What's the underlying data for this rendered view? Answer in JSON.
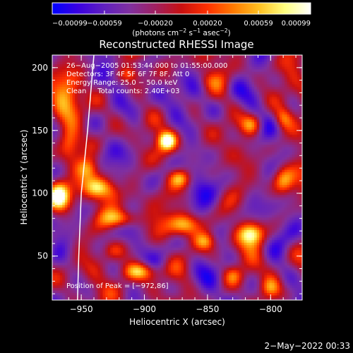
{
  "chart_data": {
    "type": "heatmap",
    "title": "Reconstructed RHESSI Image",
    "xlabel": "Heliocentric X (arcsec)",
    "ylabel": "Heliocentric Y (arcsec)",
    "xlim": [
      -973,
      -775
    ],
    "ylim": [
      15,
      210
    ],
    "x_ticks": [
      -950,
      -900,
      -850,
      -800
    ],
    "x_tick_labels": [
      "−950",
      "−900",
      "−850",
      "−800"
    ],
    "y_ticks": [
      50,
      100,
      150,
      200
    ],
    "y_tick_labels": [
      "50",
      "100",
      "150",
      "200"
    ],
    "colorbar": {
      "range": [
        -0.00099,
        0.00099
      ],
      "ticks": [
        -0.00099,
        -0.00059,
        -0.0002,
        0.0002,
        0.00059,
        0.00099
      ],
      "tick_labels": [
        "−0.00099",
        "−0.00059",
        "−0.00020",
        "0.00020",
        "0.00059",
        "0.00099"
      ],
      "unit_label": "(photons cm⁻² s⁻¹ asec⁻²)",
      "unit_parts": [
        "(photons cm",
        "−2",
        " s",
        "−1",
        " asec",
        "−2",
        ")"
      ],
      "colors": [
        "#0000ff",
        "#3a00e0",
        "#6020c0",
        "#8030a0",
        "#a02060",
        "#c81010",
        "#ff3000",
        "#ff7a00",
        "#ffc020",
        "#ffff80",
        "#ffffff"
      ]
    },
    "annotations": [
      "26−Aug−2005 01:53:44.000 to 01:55:00.000",
      "Detectors: 3F 4F 5F 6F 7F 8F, Att 0",
      "Energy Range: 25.0 − 50.0 keV",
      "Clean     Total counts: 2.40E+03"
    ],
    "peak_label": "Position of Peak = [−972,86]",
    "peak": {
      "x": -972,
      "y": 86
    },
    "limb_points": [
      [
        -940,
        210
      ],
      [
        -945,
        150
      ],
      [
        -950,
        100
      ],
      [
        -952,
        50
      ],
      [
        -953,
        15
      ]
    ],
    "hot_spots": [
      {
        "x": -968,
        "y": 98,
        "sx": 6,
        "sy": 8,
        "v": 1.0
      },
      {
        "x": -960,
        "y": 140,
        "sx": 6,
        "sy": 10,
        "v": 0.75
      },
      {
        "x": -962,
        "y": 180,
        "sx": 8,
        "sy": 12,
        "v": 0.7
      },
      {
        "x": -935,
        "y": 105,
        "sx": 8,
        "sy": 6,
        "v": 0.8
      },
      {
        "x": -945,
        "y": 120,
        "sx": 6,
        "sy": 6,
        "v": 0.7
      },
      {
        "x": -918,
        "y": 80,
        "sx": 10,
        "sy": 5,
        "v": 0.75
      },
      {
        "x": -903,
        "y": 38,
        "sx": 10,
        "sy": 5,
        "v": 0.85
      },
      {
        "x": -925,
        "y": 55,
        "sx": 7,
        "sy": 6,
        "v": 0.6
      },
      {
        "x": -882,
        "y": 142,
        "sx": 5,
        "sy": 5,
        "v": 0.95
      },
      {
        "x": -872,
        "y": 112,
        "sx": 6,
        "sy": 5,
        "v": 0.75
      },
      {
        "x": -868,
        "y": 75,
        "sx": 8,
        "sy": 6,
        "v": 0.8
      },
      {
        "x": -852,
        "y": 62,
        "sx": 6,
        "sy": 5,
        "v": 0.7
      },
      {
        "x": -815,
        "y": 68,
        "sx": 7,
        "sy": 6,
        "v": 0.8
      },
      {
        "x": -800,
        "y": 25,
        "sx": 6,
        "sy": 6,
        "v": 0.75
      },
      {
        "x": -790,
        "y": 110,
        "sx": 6,
        "sy": 8,
        "v": 0.75
      },
      {
        "x": -815,
        "y": 155,
        "sx": 6,
        "sy": 6,
        "v": 0.75
      },
      {
        "x": -790,
        "y": 160,
        "sx": 5,
        "sy": 6,
        "v": 0.7
      },
      {
        "x": -850,
        "y": 190,
        "sx": 7,
        "sy": 5,
        "v": 0.5
      },
      {
        "x": -912,
        "y": 195,
        "sx": 6,
        "sy": 4,
        "v": 0.6
      },
      {
        "x": -925,
        "y": 100,
        "sx": 6,
        "sy": 6,
        "v": 0.55
      },
      {
        "x": -830,
        "y": 35,
        "sx": 5,
        "sy": 5,
        "v": 0.55
      }
    ],
    "cold_spots": [
      {
        "x": -840,
        "y": 120,
        "sx": 10,
        "sy": 12,
        "v": 0.25
      },
      {
        "x": -900,
        "y": 170,
        "sx": 10,
        "sy": 10,
        "v": 0.2
      },
      {
        "x": -830,
        "y": 185,
        "sx": 8,
        "sy": 8,
        "v": 0.2
      },
      {
        "x": -890,
        "y": 60,
        "sx": 8,
        "sy": 8,
        "v": 0.25
      }
    ]
  },
  "footer_timestamp": "2−May−2022 00:33"
}
